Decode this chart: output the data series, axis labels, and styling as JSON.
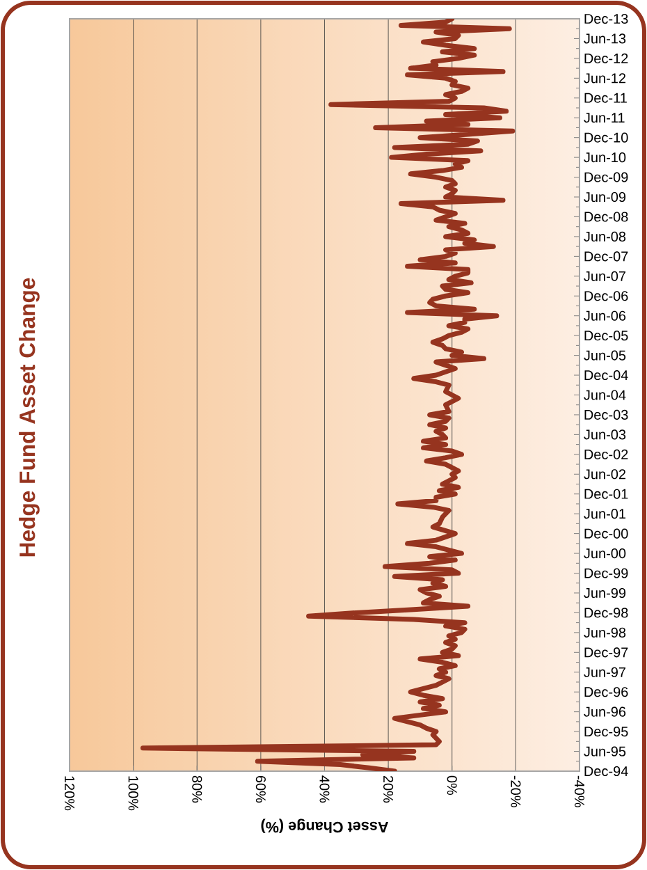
{
  "chart_data": {
    "type": "line",
    "orientation": "horizontal",
    "title": "Hedge Fund Asset Change",
    "xlabel": "Asset Change (%)",
    "x": [
      "1994-12",
      "1995-01",
      "1995-02",
      "1995-03",
      "1995-04",
      "1995-05",
      "1995-06",
      "1995-07",
      "1995-08",
      "1995-09",
      "1995-10",
      "1995-11",
      "1995-12",
      "1996-01",
      "1996-02",
      "1996-03",
      "1996-04",
      "1996-05",
      "1996-06",
      "1996-07",
      "1996-08",
      "1996-09",
      "1996-10",
      "1996-11",
      "1996-12",
      "1997-01",
      "1997-02",
      "1997-03",
      "1997-04",
      "1997-05",
      "1997-06",
      "1997-07",
      "1997-08",
      "1997-09",
      "1997-10",
      "1997-11",
      "1997-12",
      "1998-01",
      "1998-02",
      "1998-03",
      "1998-04",
      "1998-05",
      "1998-06",
      "1998-07",
      "1998-08",
      "1998-09",
      "1998-10",
      "1998-11",
      "1998-12",
      "1999-01",
      "1999-02",
      "1999-03",
      "1999-04",
      "1999-05",
      "1999-06",
      "1999-07",
      "1999-08",
      "1999-09",
      "1999-10",
      "1999-11",
      "1999-12",
      "2000-01",
      "2000-02",
      "2000-03",
      "2000-04",
      "2000-05",
      "2000-06",
      "2000-07",
      "2000-08",
      "2000-09",
      "2000-10",
      "2000-11",
      "2000-12",
      "2001-02",
      "2001-03",
      "2001-05",
      "2001-07",
      "2001-08",
      "2001-09",
      "2001-10",
      "2001-11",
      "2001-12",
      "2002-01",
      "2002-02",
      "2002-03",
      "2002-05",
      "2002-06",
      "2002-07",
      "2002-09",
      "2002-10",
      "2002-11",
      "2002-12",
      "2003-01",
      "2003-02",
      "2003-03",
      "2003-04",
      "2003-05",
      "2003-06",
      "2003-07",
      "2003-08",
      "2003-09",
      "2003-10",
      "2003-11",
      "2003-12",
      "2004-01",
      "2004-03",
      "2004-05",
      "2004-07",
      "2004-09",
      "2004-10",
      "2004-11",
      "2004-12",
      "2005-01",
      "2005-02",
      "2005-04",
      "2005-05",
      "2005-06",
      "2005-07",
      "2005-08",
      "2005-09",
      "2005-10",
      "2005-11",
      "2005-12",
      "2006-01",
      "2006-02",
      "2006-03",
      "2006-04",
      "2006-05",
      "2006-06",
      "2006-07",
      "2006-08",
      "2006-09",
      "2006-10",
      "2006-11",
      "2006-12",
      "2007-01",
      "2007-02",
      "2007-03",
      "2007-04",
      "2007-05",
      "2007-06",
      "2007-07",
      "2007-08",
      "2007-09",
      "2007-10",
      "2007-11",
      "2007-12",
      "2008-01",
      "2008-02",
      "2008-03",
      "2008-04",
      "2008-05",
      "2008-06",
      "2008-07",
      "2008-08",
      "2008-09",
      "2008-10",
      "2008-11",
      "2008-12",
      "2009-01",
      "2009-02",
      "2009-03",
      "2009-04",
      "2009-05",
      "2009-06",
      "2009-07",
      "2009-08",
      "2009-09",
      "2009-10",
      "2009-11",
      "2009-12",
      "2010-01",
      "2010-02",
      "2010-03",
      "2010-04",
      "2010-05",
      "2010-06",
      "2010-07",
      "2010-08",
      "2010-09",
      "2010-10",
      "2010-11",
      "2010-12",
      "2011-01",
      "2011-02",
      "2011-03",
      "2011-04",
      "2011-05",
      "2011-06",
      "2011-07",
      "2011-08",
      "2011-09",
      "2011-10",
      "2011-11",
      "2011-12",
      "2012-01",
      "2012-02",
      "2012-03",
      "2012-04",
      "2012-05",
      "2012-06",
      "2012-07",
      "2012-08",
      "2012-09",
      "2012-10",
      "2012-11",
      "2012-12",
      "2013-01",
      "2013-02",
      "2013-03",
      "2013-04",
      "2013-05",
      "2013-06",
      "2013-07",
      "2013-08",
      "2013-09",
      "2013-10",
      "2013-11",
      "2013-12"
    ],
    "series": [
      {
        "color": "#96341f",
        "values": [
          18,
          26,
          35,
          61,
          12,
          28,
          12,
          97,
          5,
          4,
          5,
          6,
          5,
          8,
          10,
          14,
          18,
          10,
          2,
          9,
          4,
          10,
          3,
          9,
          13,
          9,
          5,
          3,
          1,
          5,
          2,
          4,
          -1,
          3,
          10,
          -2,
          3,
          0,
          -1,
          2,
          -1,
          1,
          -3,
          -4,
          2,
          -4,
          12,
          45,
          30,
          12,
          -5,
          9,
          7,
          4,
          8,
          10,
          2,
          6,
          3,
          18,
          -2,
          0,
          21,
          7,
          -1,
          7,
          -3,
          1,
          5,
          14,
          5,
          2,
          -1,
          6,
          4,
          3,
          1,
          6,
          17,
          5,
          5,
          -1,
          4,
          -2,
          3,
          -1,
          0,
          -2,
          2,
          8,
          2,
          -3,
          0,
          9,
          2,
          9,
          2,
          3,
          5,
          2,
          7,
          2,
          1,
          7,
          1,
          2,
          -2,
          2,
          1,
          5,
          12,
          5,
          2,
          -1,
          5,
          -10,
          0,
          -3,
          2,
          3,
          6,
          3,
          1,
          -3,
          -5,
          1,
          -4,
          -4,
          -14,
          14,
          -7,
          5,
          7,
          6,
          2,
          -5,
          2,
          3,
          -6,
          1,
          -1,
          -5,
          -5,
          14,
          -1,
          10,
          2,
          -1,
          2,
          -13,
          -4,
          -7,
          2,
          -5,
          -3,
          1,
          -4,
          5,
          2,
          -1,
          4,
          6,
          16,
          -16,
          2,
          0,
          -1,
          2,
          -1,
          0,
          5,
          13,
          3,
          -3,
          -1,
          -5,
          19,
          8,
          -9,
          18,
          -5,
          -8,
          10,
          -5,
          -19,
          24,
          -5,
          8,
          -15,
          2,
          -17,
          -10,
          38,
          1,
          -1,
          2,
          -3,
          -5,
          0,
          -1,
          2,
          14,
          -16,
          13,
          5,
          6,
          -2,
          -7,
          3,
          -7,
          2,
          9,
          -1,
          -2,
          5,
          -18,
          16,
          2,
          0
        ]
      }
    ],
    "ylim": [
      "1994-12",
      "2013-12"
    ],
    "yticks": [
      {
        "value": "1994-12",
        "label": "Dec-94"
      },
      {
        "value": "1995-06",
        "label": "Jun-95"
      },
      {
        "value": "1995-12",
        "label": "Dec-95"
      },
      {
        "value": "1996-06",
        "label": "Jun-96"
      },
      {
        "value": "1996-12",
        "label": "Dec-96"
      },
      {
        "value": "1997-06",
        "label": "Jun-97"
      },
      {
        "value": "1997-12",
        "label": "Dec-97"
      },
      {
        "value": "1998-06",
        "label": "Jun-98"
      },
      {
        "value": "1998-12",
        "label": "Dec-98"
      },
      {
        "value": "1999-06",
        "label": "Jun-99"
      },
      {
        "value": "1999-12",
        "label": "Dec-99"
      },
      {
        "value": "2000-06",
        "label": "Jun-00"
      },
      {
        "value": "2000-12",
        "label": "Dec-00"
      },
      {
        "value": "2001-06",
        "label": "Jun-01"
      },
      {
        "value": "2001-12",
        "label": "Dec-01"
      },
      {
        "value": "2002-06",
        "label": "Jun-02"
      },
      {
        "value": "2002-12",
        "label": "Dec-02"
      },
      {
        "value": "2003-06",
        "label": "Jun-03"
      },
      {
        "value": "2003-12",
        "label": "Dec-03"
      },
      {
        "value": "2004-06",
        "label": "Jun-04"
      },
      {
        "value": "2004-12",
        "label": "Dec-04"
      },
      {
        "value": "2005-06",
        "label": "Jun-05"
      },
      {
        "value": "2005-12",
        "label": "Dec-05"
      },
      {
        "value": "2006-06",
        "label": "Jun-06"
      },
      {
        "value": "2006-12",
        "label": "Dec-06"
      },
      {
        "value": "2007-06",
        "label": "Jun-07"
      },
      {
        "value": "2007-12",
        "label": "Dec-07"
      },
      {
        "value": "2008-06",
        "label": "Jun-08"
      },
      {
        "value": "2008-12",
        "label": "Dec-08"
      },
      {
        "value": "2009-06",
        "label": "Jun-09"
      },
      {
        "value": "2009-12",
        "label": "Dec-09"
      },
      {
        "value": "2010-06",
        "label": "Jun-10"
      },
      {
        "value": "2010-12",
        "label": "Dec-10"
      },
      {
        "value": "2011-06",
        "label": "Jun-11"
      },
      {
        "value": "2011-12",
        "label": "Dec-11"
      },
      {
        "value": "2012-06",
        "label": "Jun-12"
      },
      {
        "value": "2012-12",
        "label": "Dec-12"
      },
      {
        "value": "2013-06",
        "label": "Jun-13"
      },
      {
        "value": "2013-12",
        "label": "Dec-13"
      }
    ],
    "xlim": [
      120,
      -40
    ],
    "xticks": [
      {
        "value": 120,
        "label": "120%"
      },
      {
        "value": 100,
        "label": "100%"
      },
      {
        "value": 80,
        "label": "80%"
      },
      {
        "value": 60,
        "label": "60%"
      },
      {
        "value": 40,
        "label": "40%"
      },
      {
        "value": 20,
        "label": "20%"
      },
      {
        "value": 0,
        "label": "0%"
      },
      {
        "value": -20,
        "label": "-20%"
      },
      {
        "value": -40,
        "label": "-40%"
      }
    ],
    "grid": "x"
  }
}
